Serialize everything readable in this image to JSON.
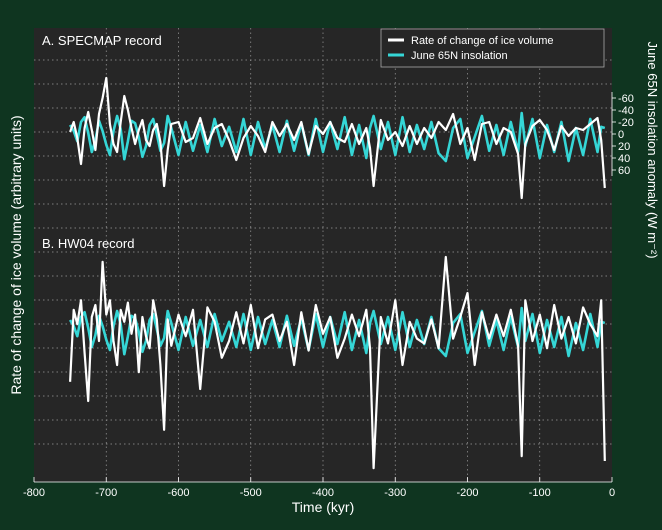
{
  "ylabel_left": "Rate of change of ice volume (arbitrary units)",
  "ylabel_right": "June 65N insolation anomaly (W m⁻²)",
  "xlabel": "Time (kyr)",
  "colors": {
    "background": "#0f3520",
    "plot_bg": "#262626",
    "grid": "#9a9a9a",
    "ice": "#ffffff",
    "insolation": "#35d6d6"
  },
  "legend": {
    "placement": "top-right",
    "ice_label": "Rate of change of ice volume",
    "insolation_label": "June 65N insolation"
  },
  "chart_data": [
    {
      "type": "line",
      "title": "A. SPECMAP record",
      "xlabel": "Time (kyr)",
      "xlim": [
        -800,
        0
      ],
      "xticks": [
        -800,
        -700,
        -600,
        -500,
        -400,
        -300,
        -200,
        -100,
        0
      ],
      "xticklabels": [
        "-800",
        "-700",
        "-600",
        "-500",
        "-400",
        "-300",
        "-200",
        "-100",
        "0"
      ],
      "y2label": "June 65N insolation anomaly (W m⁻²)",
      "y2lim": [
        80,
        -80
      ],
      "y2ticks": [
        -60,
        -40,
        -20,
        0,
        20,
        40,
        60
      ],
      "y2ticklabels": [
        "-60",
        "-40",
        "-20",
        "0",
        "20",
        "40",
        "60"
      ],
      "grid": true,
      "legend_placement": "top-right",
      "series": [
        {
          "name": "Rate of change of ice volume",
          "x": [
            -750,
            -745,
            -740,
            -735,
            -730,
            -725,
            -720,
            -715,
            -710,
            -705,
            -700,
            -695,
            -690,
            -685,
            -680,
            -675,
            -670,
            -665,
            -660,
            -655,
            -650,
            -645,
            -640,
            -635,
            -630,
            -625,
            -620,
            -615,
            -610,
            -600,
            -590,
            -580,
            -570,
            -560,
            -550,
            -540,
            -530,
            -520,
            -510,
            -500,
            -490,
            -480,
            -470,
            -460,
            -450,
            -440,
            -430,
            -420,
            -410,
            -400,
            -390,
            -380,
            -370,
            -360,
            -350,
            -340,
            -335,
            -330,
            -320,
            -310,
            -300,
            -290,
            -280,
            -270,
            -260,
            -250,
            -240,
            -230,
            -220,
            -210,
            -200,
            -190,
            -180,
            -170,
            -160,
            -150,
            -140,
            -130,
            -125,
            -120,
            -110,
            -100,
            -90,
            -80,
            -70,
            -60,
            -50,
            -40,
            -30,
            -20,
            -15,
            -10
          ],
          "y": [
            0.1,
            0.6,
            -0.2,
            -1.5,
            0.3,
            1.1,
            0.2,
            -0.8,
            1.0,
            1.8,
            2.8,
            0.5,
            -0.5,
            -0.9,
            0.6,
            1.9,
            1.2,
            0.3,
            -0.5,
            0.2,
            0.7,
            -0.3,
            -0.6,
            0.2,
            0.5,
            -0.4,
            -2.6,
            -0.8,
            0.5,
            0.6,
            -0.4,
            -0.2,
            0.8,
            -0.5,
            0.3,
            0.5,
            -0.3,
            -1.3,
            -0.2,
            0.4,
            -0.1,
            -0.9,
            0.6,
            -0.1,
            0.5,
            -0.3,
            0.6,
            -1.0,
            0.4,
            0.0,
            0.6,
            -0.2,
            -0.4,
            0.5,
            -0.5,
            0.3,
            -0.7,
            -2.6,
            0.7,
            -0.3,
            0.1,
            -0.6,
            0.4,
            -0.5,
            0.3,
            -0.2,
            0.6,
            0.2,
            1.0,
            -0.5,
            0.3,
            -1.3,
            0.5,
            0.6,
            -0.5,
            0.3,
            0.1,
            -1.0,
            -3.2,
            -0.5,
            0.4,
            0.7,
            0.2,
            -0.8,
            0.4,
            -0.1,
            0.3,
            0.2,
            0.5,
            0.8,
            -0.3,
            -2.7
          ]
        },
        {
          "name": "June 65N insolation",
          "x": [
            -750,
            -745,
            -740,
            -735,
            -730,
            -725,
            -720,
            -715,
            -710,
            -705,
            -700,
            -695,
            -690,
            -685,
            -680,
            -675,
            -670,
            -665,
            -660,
            -655,
            -650,
            -645,
            -640,
            -635,
            -630,
            -625,
            -620,
            -615,
            -610,
            -600,
            -590,
            -580,
            -570,
            -560,
            -550,
            -540,
            -530,
            -520,
            -510,
            -500,
            -490,
            -480,
            -470,
            -460,
            -450,
            -440,
            -430,
            -420,
            -410,
            -400,
            -390,
            -380,
            -370,
            -360,
            -350,
            -340,
            -335,
            -330,
            -320,
            -310,
            -300,
            -290,
            -280,
            -270,
            -260,
            -250,
            -240,
            -230,
            -220,
            -210,
            -200,
            -190,
            -180,
            -170,
            -160,
            -150,
            -140,
            -130,
            -125,
            -120,
            -110,
            -100,
            -90,
            -80,
            -70,
            -60,
            -50,
            -40,
            -30,
            -20,
            -15,
            -10
          ],
          "y": [
            -15,
            -5,
            12,
            -20,
            -28,
            -2,
            30,
            10,
            -22,
            -5,
            18,
            35,
            -5,
            -30,
            -8,
            42,
            12,
            -22,
            -18,
            5,
            38,
            20,
            -15,
            -25,
            0,
            28,
            15,
            -30,
            -10,
            35,
            -20,
            28,
            -15,
            30,
            -25,
            20,
            -12,
            30,
            -25,
            35,
            -20,
            25,
            -15,
            30,
            -22,
            28,
            -18,
            35,
            -25,
            30,
            -20,
            25,
            -28,
            35,
            -15,
            40,
            -10,
            -30,
            25,
            -20,
            35,
            -28,
            30,
            -15,
            25,
            -20,
            32,
            45,
            -10,
            -25,
            40,
            5,
            -30,
            28,
            -15,
            35,
            -20,
            30,
            -35,
            20,
            -25,
            40,
            -15,
            30,
            -20,
            45,
            -10,
            35,
            -25,
            30,
            -12,
            -10
          ]
        }
      ]
    },
    {
      "type": "line",
      "title": "B. HW04 record",
      "xlabel": "Time (kyr)",
      "xlim": [
        -800,
        0
      ],
      "xticks": [
        -800,
        -700,
        -600,
        -500,
        -400,
        -300,
        -200,
        -100,
        0
      ],
      "xticklabels": [
        "-800",
        "-700",
        "-600",
        "-500",
        "-400",
        "-300",
        "-200",
        "-100",
        "0"
      ],
      "grid": true,
      "series": [
        {
          "name": "Rate of change of ice volume",
          "x": [
            -750,
            -745,
            -740,
            -735,
            -730,
            -725,
            -720,
            -715,
            -710,
            -705,
            -700,
            -695,
            -690,
            -685,
            -680,
            -675,
            -670,
            -665,
            -660,
            -655,
            -650,
            -645,
            -640,
            -635,
            -630,
            -625,
            -620,
            -615,
            -610,
            -600,
            -590,
            -580,
            -570,
            -560,
            -550,
            -540,
            -530,
            -520,
            -510,
            -500,
            -490,
            -480,
            -470,
            -460,
            -450,
            -440,
            -430,
            -420,
            -410,
            -400,
            -390,
            -380,
            -370,
            -360,
            -350,
            -340,
            -335,
            -330,
            -320,
            -310,
            -300,
            -290,
            -280,
            -270,
            -260,
            -250,
            -240,
            -230,
            -220,
            -210,
            -200,
            -190,
            -180,
            -170,
            -160,
            -150,
            -140,
            -130,
            -125,
            -120,
            -110,
            -100,
            -90,
            -80,
            -70,
            -60,
            -50,
            -40,
            -30,
            -20,
            -15,
            -10
          ],
          "y": [
            -2.2,
            0.8,
            0.2,
            1.2,
            -1.0,
            -3.0,
            0.5,
            1.0,
            -0.5,
            2.8,
            0.6,
            1.2,
            -0.5,
            -1.5,
            0.8,
            0.3,
            1.1,
            -0.2,
            0.6,
            -1.8,
            0.5,
            -0.3,
            -0.8,
            1.2,
            0.4,
            -1.5,
            -4.2,
            0.4,
            -0.7,
            0.6,
            -0.3,
            0.8,
            -2.5,
            0.9,
            0.3,
            -1.2,
            -0.5,
            0.7,
            -0.6,
            1.0,
            -0.8,
            0.4,
            0.6,
            -0.5,
            0.3,
            -1.5,
            0.7,
            -0.9,
            1.0,
            -0.2,
            0.5,
            -1.2,
            -0.4,
            0.6,
            -0.3,
            0.8,
            -0.8,
            -5.8,
            0.5,
            -0.6,
            1.2,
            -1.5,
            0.3,
            -0.4,
            -0.6,
            0.4,
            -0.8,
            3.0,
            -0.4,
            0.5,
            1.5,
            -1.5,
            0.7,
            -0.4,
            0.6,
            -0.3,
            0.8,
            -0.7,
            -5.3,
            1.2,
            -0.5,
            0.6,
            -0.8,
            1.0,
            -0.4,
            0.5,
            -0.6,
            0.9,
            0.2,
            -0.3,
            1.2,
            -5.5
          ]
        },
        {
          "name": "June 65N insolation",
          "x": [
            -750,
            -745,
            -740,
            -735,
            -730,
            -725,
            -720,
            -715,
            -710,
            -705,
            -700,
            -695,
            -690,
            -685,
            -680,
            -675,
            -670,
            -665,
            -660,
            -655,
            -650,
            -645,
            -640,
            -635,
            -630,
            -625,
            -620,
            -615,
            -610,
            -600,
            -590,
            -580,
            -570,
            -560,
            -550,
            -540,
            -530,
            -520,
            -510,
            -500,
            -490,
            -480,
            -470,
            -460,
            -450,
            -440,
            -430,
            -420,
            -410,
            -400,
            -390,
            -380,
            -370,
            -360,
            -350,
            -340,
            -335,
            -330,
            -320,
            -310,
            -300,
            -290,
            -280,
            -270,
            -260,
            -250,
            -240,
            -230,
            -220,
            -210,
            -200,
            -190,
            -180,
            -170,
            -160,
            -150,
            -140,
            -130,
            -125,
            -120,
            -110,
            -100,
            -90,
            -80,
            -70,
            -60,
            -50,
            -40,
            -30,
            -20,
            -15,
            -10
          ],
          "y": [
            -15,
            -5,
            12,
            -20,
            -28,
            -2,
            30,
            10,
            -22,
            -5,
            18,
            35,
            -5,
            -30,
            -8,
            42,
            12,
            -22,
            -18,
            5,
            38,
            20,
            -15,
            -25,
            0,
            28,
            15,
            -30,
            -10,
            35,
            -20,
            28,
            -15,
            30,
            -25,
            20,
            -12,
            30,
            -25,
            35,
            -20,
            25,
            -15,
            30,
            -22,
            28,
            -18,
            35,
            -25,
            30,
            -20,
            25,
            -28,
            35,
            -15,
            40,
            -10,
            -30,
            25,
            -20,
            35,
            -28,
            30,
            -15,
            25,
            -20,
            32,
            45,
            -10,
            -25,
            40,
            5,
            -30,
            28,
            -15,
            35,
            -20,
            30,
            -35,
            20,
            -25,
            40,
            -15,
            30,
            -20,
            45,
            -10,
            35,
            -25,
            30,
            -12,
            -10
          ]
        }
      ]
    }
  ]
}
